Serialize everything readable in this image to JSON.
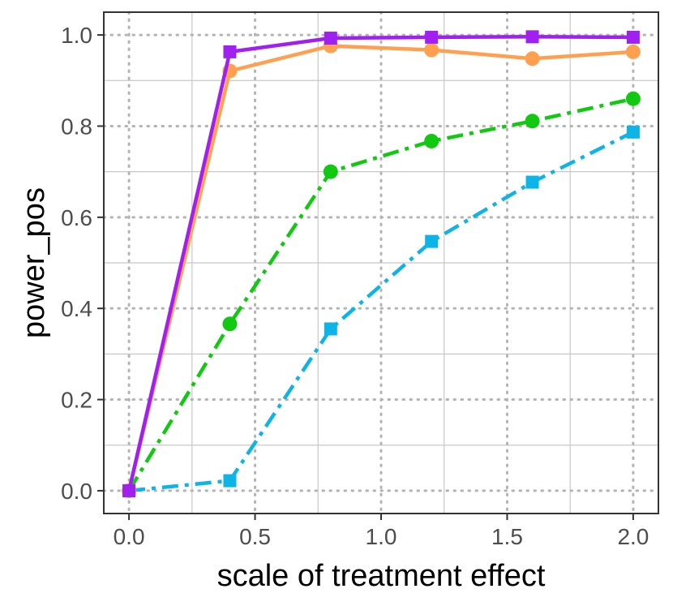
{
  "chart_data": {
    "type": "line",
    "title": "",
    "xlabel": "scale of treatment effect",
    "ylabel": "power_pos",
    "xlim": [
      -0.1,
      2.1
    ],
    "ylim": [
      -0.05,
      1.05
    ],
    "x_ticks": [
      0.0,
      0.5,
      1.0,
      1.5,
      2.0
    ],
    "x_tick_labels": [
      "0.0",
      "0.5",
      "1.0",
      "1.5",
      "2.0"
    ],
    "y_ticks": [
      0.0,
      0.2,
      0.4,
      0.6,
      0.8,
      1.0
    ],
    "y_tick_labels": [
      "0.0",
      "0.2",
      "0.4",
      "0.6",
      "0.8",
      "1.0"
    ],
    "grid": true,
    "legend": "none",
    "x": [
      0.0,
      0.4,
      0.8,
      1.2,
      1.6,
      2.0
    ],
    "series": [
      {
        "name": "cyan-squares",
        "color": "#0eb4e6",
        "line_style": "dashdot",
        "marker": "square",
        "values": [
          0.0,
          0.022,
          0.355,
          0.547,
          0.677,
          0.787
        ]
      },
      {
        "name": "green-circles",
        "color": "#12c912",
        "line_style": "dashdot",
        "marker": "circle",
        "values": [
          0.0,
          0.366,
          0.7,
          0.767,
          0.811,
          0.86
        ]
      },
      {
        "name": "orange-circles",
        "color": "#ffa050",
        "line_style": "solid",
        "marker": "circle",
        "values": [
          0.0,
          0.921,
          0.976,
          0.967,
          0.948,
          0.963
        ]
      },
      {
        "name": "purple-squares",
        "color": "#a020f0",
        "line_style": "solid",
        "marker": "square",
        "values": [
          0.0,
          0.963,
          0.993,
          0.995,
          0.996,
          0.995
        ]
      }
    ]
  }
}
